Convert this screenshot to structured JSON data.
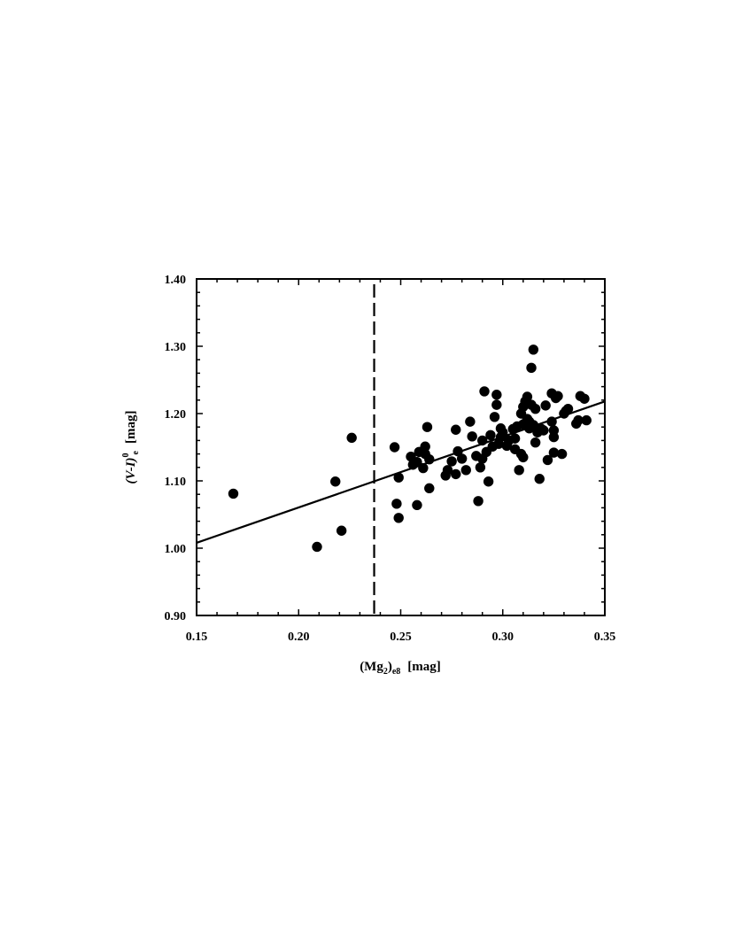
{
  "chart_data": {
    "type": "scatter",
    "xlim": [
      0.15,
      0.35
    ],
    "ylim": [
      0.9,
      1.4
    ],
    "x_ticks": [
      "0.15",
      "0.20",
      "0.25",
      "0.30",
      "0.35"
    ],
    "y_ticks": [
      "0.90",
      "1.00",
      "1.10",
      "1.20",
      "1.30",
      "1.40"
    ],
    "xlabel": {
      "main": "(Mg",
      "sub1": "2",
      "close": ")",
      "sub2": "e8",
      "unit": "[mag]"
    },
    "ylabel": {
      "main": "(V-I)",
      "sup": "0",
      "sub": "e",
      "unit": "[mag]"
    },
    "grid": false,
    "marker_color": "#000000",
    "fit_line": {
      "x": [
        0.15,
        0.35
      ],
      "y": [
        1.008,
        1.218
      ]
    },
    "cutoff_x": 0.237,
    "points": [
      [
        0.168,
        1.081
      ],
      [
        0.209,
        1.002
      ],
      [
        0.218,
        1.099
      ],
      [
        0.221,
        1.026
      ],
      [
        0.226,
        1.164
      ],
      [
        0.247,
        1.15
      ],
      [
        0.248,
        1.066
      ],
      [
        0.249,
        1.105
      ],
      [
        0.249,
        1.045
      ],
      [
        0.255,
        1.136
      ],
      [
        0.256,
        1.124
      ],
      [
        0.258,
        1.128
      ],
      [
        0.258,
        1.064
      ],
      [
        0.259,
        1.143
      ],
      [
        0.261,
        1.119
      ],
      [
        0.262,
        1.151
      ],
      [
        0.262,
        1.14
      ],
      [
        0.263,
        1.18
      ],
      [
        0.264,
        1.132
      ],
      [
        0.264,
        1.089
      ],
      [
        0.272,
        1.108
      ],
      [
        0.273,
        1.116
      ],
      [
        0.275,
        1.129
      ],
      [
        0.277,
        1.176
      ],
      [
        0.277,
        1.11
      ],
      [
        0.278,
        1.144
      ],
      [
        0.28,
        1.133
      ],
      [
        0.282,
        1.116
      ],
      [
        0.284,
        1.188
      ],
      [
        0.285,
        1.166
      ],
      [
        0.287,
        1.137
      ],
      [
        0.288,
        1.07
      ],
      [
        0.289,
        1.12
      ],
      [
        0.29,
        1.16
      ],
      [
        0.29,
        1.133
      ],
      [
        0.291,
        1.233
      ],
      [
        0.292,
        1.143
      ],
      [
        0.293,
        1.099
      ],
      [
        0.294,
        1.168
      ],
      [
        0.295,
        1.151
      ],
      [
        0.296,
        1.195
      ],
      [
        0.297,
        1.213
      ],
      [
        0.297,
        1.228
      ],
      [
        0.298,
        1.155
      ],
      [
        0.299,
        1.178
      ],
      [
        0.299,
        1.165
      ],
      [
        0.3,
        1.172
      ],
      [
        0.302,
        1.152
      ],
      [
        0.303,
        1.16
      ],
      [
        0.305,
        1.177
      ],
      [
        0.306,
        1.147
      ],
      [
        0.306,
        1.163
      ],
      [
        0.307,
        1.181
      ],
      [
        0.308,
        1.116
      ],
      [
        0.309,
        1.2
      ],
      [
        0.309,
        1.14
      ],
      [
        0.31,
        1.21
      ],
      [
        0.31,
        1.184
      ],
      [
        0.31,
        1.135
      ],
      [
        0.311,
        1.218
      ],
      [
        0.312,
        1.192
      ],
      [
        0.312,
        1.225
      ],
      [
        0.313,
        1.188
      ],
      [
        0.313,
        1.178
      ],
      [
        0.314,
        1.268
      ],
      [
        0.314,
        1.213
      ],
      [
        0.315,
        1.295
      ],
      [
        0.315,
        1.183
      ],
      [
        0.316,
        1.207
      ],
      [
        0.316,
        1.157
      ],
      [
        0.317,
        1.172
      ],
      [
        0.318,
        1.103
      ],
      [
        0.319,
        1.177
      ],
      [
        0.32,
        1.175
      ],
      [
        0.321,
        1.212
      ],
      [
        0.322,
        1.131
      ],
      [
        0.324,
        1.23
      ],
      [
        0.324,
        1.188
      ],
      [
        0.325,
        1.175
      ],
      [
        0.325,
        1.165
      ],
      [
        0.325,
        1.142
      ],
      [
        0.326,
        1.223
      ],
      [
        0.327,
        1.226
      ],
      [
        0.329,
        1.14
      ],
      [
        0.33,
        1.2
      ],
      [
        0.331,
        1.204
      ],
      [
        0.332,
        1.207
      ],
      [
        0.336,
        1.185
      ],
      [
        0.337,
        1.19
      ],
      [
        0.338,
        1.226
      ],
      [
        0.34,
        1.222
      ],
      [
        0.341,
        1.19
      ]
    ]
  }
}
